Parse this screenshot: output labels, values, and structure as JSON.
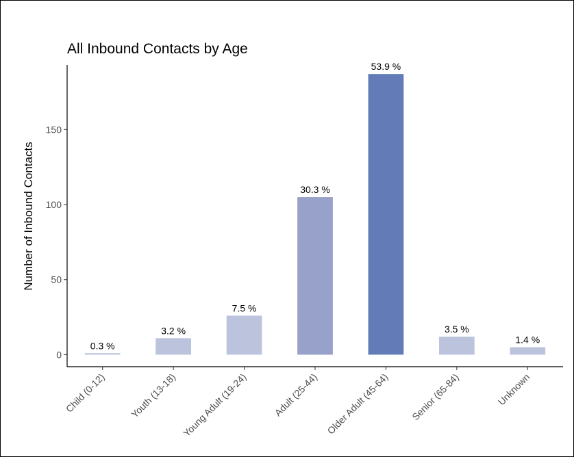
{
  "chart_data": {
    "type": "bar",
    "title": "All Inbound Contacts by Age",
    "xlabel": "",
    "ylabel": "Number of Inbound Contacts",
    "ylim": [
      -8,
      193
    ],
    "yticks": [
      0,
      50,
      100,
      150
    ],
    "categories": [
      "Child (0-12)",
      "Youth (13-18)",
      "Young Adult (19-24)",
      "Adult (25-44)",
      "Older Adult (45-64)",
      "Senior (65-84)",
      "Unknown"
    ],
    "values": [
      1,
      11,
      26,
      105,
      187,
      12,
      5
    ],
    "labels": [
      "0.3 %",
      "3.2 %",
      "7.5 %",
      "30.3 %",
      "53.9 %",
      "3.5 %",
      "1.4 %"
    ],
    "colors": [
      "#bcc4dd",
      "#bcc4dd",
      "#bcc4dd",
      "#97a1c9",
      "#637cb8",
      "#bcc4dd",
      "#bcc4dd"
    ],
    "grid": false,
    "legend": "none"
  }
}
